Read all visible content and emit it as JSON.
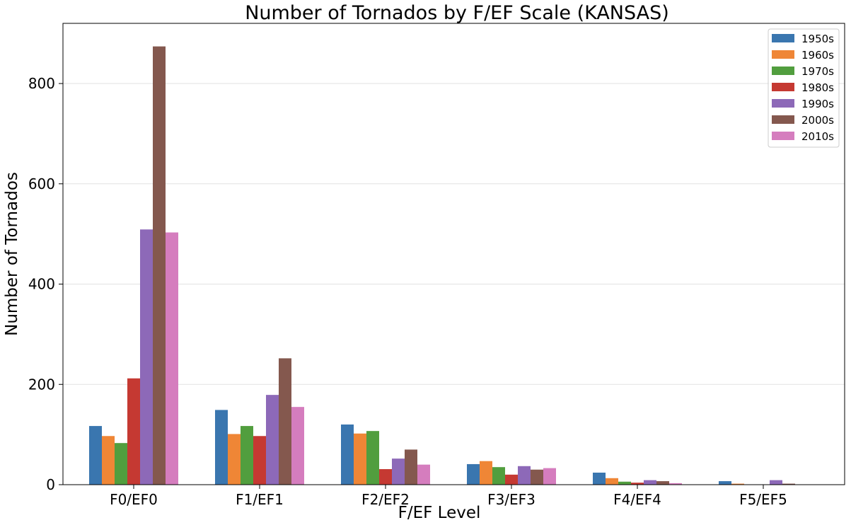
{
  "chart_data": {
    "type": "bar",
    "title": "Number of Tornados by F/EF Scale (KANSAS)",
    "xlabel": "F/EF Level",
    "ylabel": "Number of Tornados",
    "categories": [
      "F0/EF0",
      "F1/EF1",
      "F2/EF2",
      "F3/EF3",
      "F4/EF4",
      "F5/EF5"
    ],
    "ylim": [
      0,
      920
    ],
    "yticks": [
      0,
      200,
      400,
      600,
      800
    ],
    "grid": "horizontal",
    "legend_position": "top-right",
    "series": [
      {
        "name": "1950s",
        "color": "#3a76af",
        "values": [
          117,
          149,
          120,
          41,
          24,
          7
        ]
      },
      {
        "name": "1960s",
        "color": "#ef8636",
        "values": [
          97,
          101,
          102,
          47,
          13,
          2
        ]
      },
      {
        "name": "1970s",
        "color": "#519e3e",
        "values": [
          83,
          117,
          107,
          35,
          6,
          0
        ]
      },
      {
        "name": "1980s",
        "color": "#c53932",
        "values": [
          212,
          97,
          31,
          20,
          4,
          0
        ]
      },
      {
        "name": "1990s",
        "color": "#8d69b8",
        "values": [
          509,
          179,
          52,
          37,
          9,
          9
        ]
      },
      {
        "name": "2000s",
        "color": "#84584e",
        "values": [
          874,
          252,
          70,
          30,
          7,
          2
        ]
      },
      {
        "name": "2010s",
        "color": "#d57dbe",
        "values": [
          503,
          155,
          40,
          33,
          3,
          0
        ]
      }
    ]
  }
}
